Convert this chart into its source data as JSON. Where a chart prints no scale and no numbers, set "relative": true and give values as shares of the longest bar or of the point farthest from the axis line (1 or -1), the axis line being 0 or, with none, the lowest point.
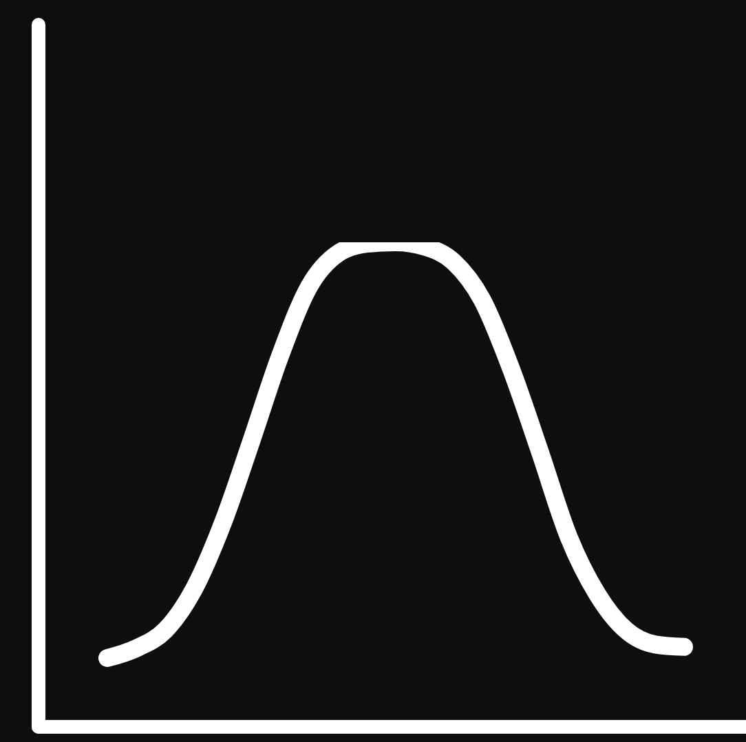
{
  "chart_data": {
    "type": "line",
    "relative": true,
    "categories": [
      null,
      null,
      null,
      null,
      null,
      null,
      null,
      null,
      null,
      null,
      null,
      null,
      null,
      null,
      null,
      null,
      null,
      null,
      null,
      null,
      null
    ],
    "series": [
      {
        "color": "#ffffff",
        "values": [
          0.142,
          0.162,
          0.199,
          0.284,
          0.42,
          0.591,
          0.767,
          0.909,
          0.977,
          0.997,
          1,
          0.991,
          0.96,
          0.881,
          0.739,
          0.568,
          0.392,
          0.273,
          0.199,
          0.17,
          0.165
        ]
      }
    ],
    "marker": "none",
    "line_style": "solid",
    "grid": false,
    "legend": false
  }
}
